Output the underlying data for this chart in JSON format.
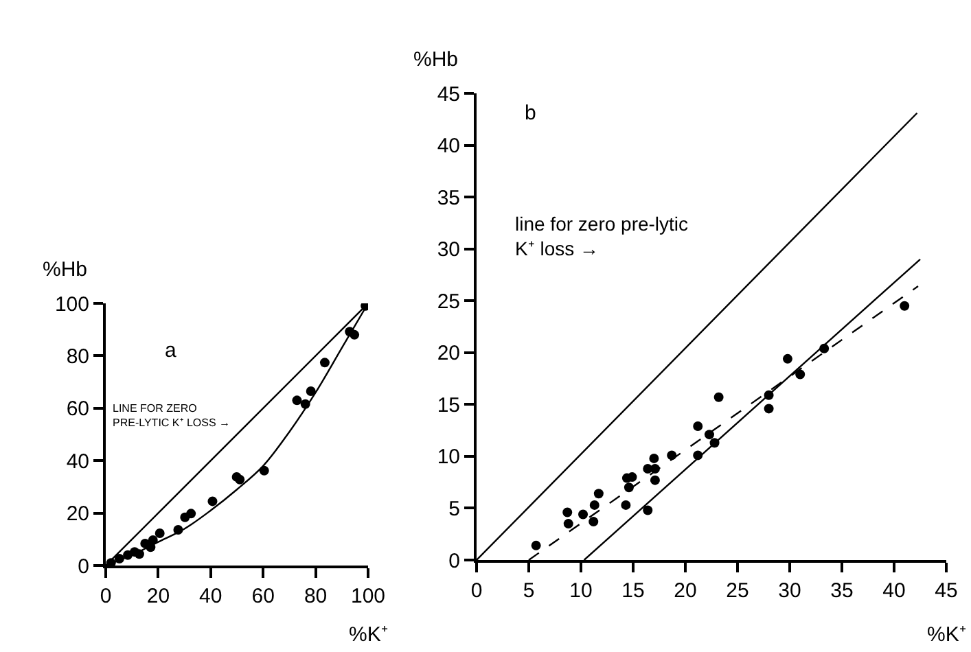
{
  "chart_data": [
    {
      "type": "scatter",
      "xlabel": "%K⁺",
      "ylabel": "%Hb",
      "xlim": [
        0,
        100
      ],
      "ylim": [
        0,
        100
      ],
      "xticks": [
        0,
        20,
        40,
        60,
        80,
        100
      ],
      "yticks": [
        0,
        20,
        40,
        60,
        80,
        100
      ],
      "grid": false,
      "annotations": [
        "a",
        "LINE FOR ZERO\nPRE-LYTIC K⁺ LOSS →"
      ],
      "series": [
        {
          "marker": "circle",
          "color": "#000000",
          "x": [
            2,
            5.2,
            8.4,
            11.0,
            12.8,
            15.0,
            17.1,
            18.0,
            20.6,
            27.6,
            30.2,
            32.5,
            40.7,
            49.9,
            51.1,
            60.4,
            72.9,
            76.1,
            78.2,
            83.5,
            93.0,
            94.8,
            99
          ],
          "values": [
            1,
            2.6,
            4.0,
            5.2,
            4.4,
            8.4,
            7.0,
            9.7,
            12.3,
            13.6,
            18.4,
            19.8,
            24.5,
            33.8,
            32.8,
            36.2,
            63.0,
            61.6,
            66.5,
            77.4,
            89.2,
            88.0,
            99
          ]
        },
        {
          "type": "line",
          "line_style": "solid",
          "marker": "none",
          "color": "#000000",
          "x": [
            0,
            100
          ],
          "values": [
            0,
            100
          ]
        },
        {
          "type": "line",
          "line_style": "solid",
          "marker": "none",
          "color": "#000000",
          "x": [
            0,
            10,
            20,
            30,
            40,
            50,
            60,
            70,
            80,
            90,
            100
          ],
          "values": [
            0,
            4,
            9,
            14,
            21,
            29,
            38,
            51,
            66,
            83,
            100
          ]
        }
      ]
    },
    {
      "type": "scatter",
      "xlabel": "%K⁺",
      "ylabel": "%Hb",
      "xlim": [
        0,
        45
      ],
      "ylim": [
        0,
        45
      ],
      "xticks": [
        0,
        5,
        10,
        15,
        20,
        25,
        30,
        35,
        40,
        45
      ],
      "yticks": [
        0,
        5,
        10,
        15,
        20,
        25,
        30,
        35,
        40,
        45
      ],
      "grid": false,
      "annotations": [
        "b",
        "line for zero pre-lytic\nK⁺ loss →"
      ],
      "series": [
        {
          "marker": "circle",
          "color": "#000000",
          "x": [
            5.7,
            8.7,
            8.8,
            10.2,
            11.2,
            11.3,
            11.7,
            14.3,
            14.4,
            14.9,
            14.6,
            16.4,
            16.4,
            17.0,
            17.1,
            17.1,
            18.7,
            21.2,
            21.2,
            22.3,
            22.8,
            23.2,
            28.0,
            28.0,
            29.8,
            31.0,
            33.3,
            41.0
          ],
          "values": [
            1.4,
            4.6,
            3.5,
            4.4,
            3.7,
            5.3,
            6.4,
            5.3,
            7.9,
            8.0,
            7.0,
            4.8,
            8.8,
            9.8,
            7.7,
            8.8,
            10.1,
            10.1,
            12.9,
            12.1,
            11.3,
            15.7,
            14.6,
            15.9,
            19.4,
            17.9,
            20.4,
            24.5
          ]
        },
        {
          "type": "line",
          "line_style": "solid",
          "marker": "none",
          "color": "#000000",
          "x": [
            0,
            42.2
          ],
          "values": [
            0,
            43.1
          ]
        },
        {
          "type": "line",
          "line_style": "solid",
          "marker": "none",
          "color": "#000000",
          "x": [
            10.3,
            42.5
          ],
          "values": [
            0,
            29.0
          ]
        },
        {
          "type": "line",
          "line_style": "dashed",
          "marker": "none",
          "color": "#000000",
          "x": [
            5.0,
            42.3
          ],
          "values": [
            0,
            26.4
          ]
        }
      ]
    }
  ]
}
